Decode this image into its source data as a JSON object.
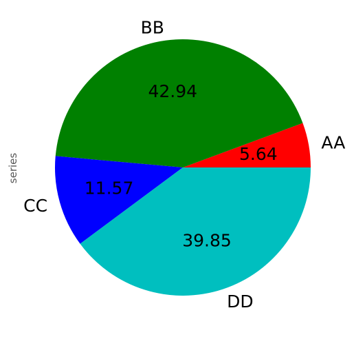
{
  "chart_data": {
    "type": "pie",
    "ylabel": "series",
    "labels": [
      "AA",
      "BB",
      "CC",
      "DD"
    ],
    "values": [
      5.64,
      42.94,
      11.57,
      39.85
    ],
    "colors": [
      "#ff0000",
      "#008000",
      "#0000ff",
      "#00bfbf"
    ],
    "start_angle": 0,
    "direction": "counterclockwise"
  }
}
